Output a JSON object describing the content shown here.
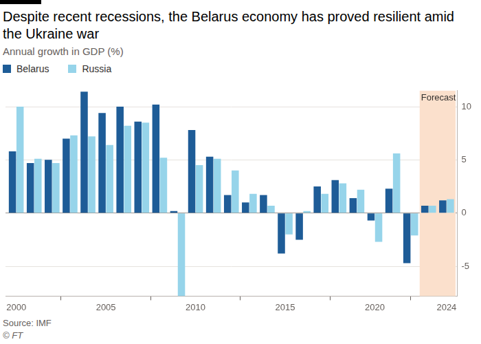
{
  "chart_data": {
    "type": "bar",
    "title": "Despite recent recessions, the Belarus economy has proved resilient amid the Ukraine war",
    "subtitle": "Annual growth in GDP (%)",
    "source": "Source: IMF",
    "credit": "© FT",
    "x": [
      2000,
      2001,
      2002,
      2003,
      2004,
      2005,
      2006,
      2007,
      2008,
      2009,
      2010,
      2011,
      2012,
      2013,
      2014,
      2015,
      2016,
      2017,
      2018,
      2019,
      2020,
      2021,
      2022,
      2023,
      2024
    ],
    "series": [
      {
        "name": "Belarus",
        "color": "#1e5c97",
        "values": [
          5.8,
          4.7,
          5.0,
          7.0,
          11.4,
          9.4,
          10.0,
          8.6,
          10.2,
          0.2,
          7.8,
          5.3,
          1.7,
          1.0,
          1.7,
          -3.8,
          -2.5,
          2.5,
          3.1,
          1.4,
          -0.7,
          2.3,
          -4.7,
          0.7,
          1.2
        ]
      },
      {
        "name": "Russia",
        "color": "#96d4ea",
        "values": [
          10.0,
          5.1,
          4.7,
          7.3,
          7.2,
          6.4,
          8.2,
          8.5,
          5.2,
          -7.8,
          4.5,
          5.1,
          4.0,
          1.8,
          0.7,
          -2.0,
          0.2,
          1.8,
          2.8,
          2.2,
          -2.7,
          5.6,
          -2.1,
          0.7,
          1.3
        ]
      }
    ],
    "xlim": [
      1999.4,
      2024.6
    ],
    "xticks": [
      2000,
      2005,
      2010,
      2015,
      2020,
      2024
    ],
    "ylim": [
      -7.8,
      11.5
    ],
    "yticks": [
      -5,
      0,
      5,
      10
    ],
    "grid": true,
    "legend": "top-left",
    "annotations": [
      {
        "text": "Forecast",
        "from": 2023,
        "to": 2024
      }
    ]
  }
}
